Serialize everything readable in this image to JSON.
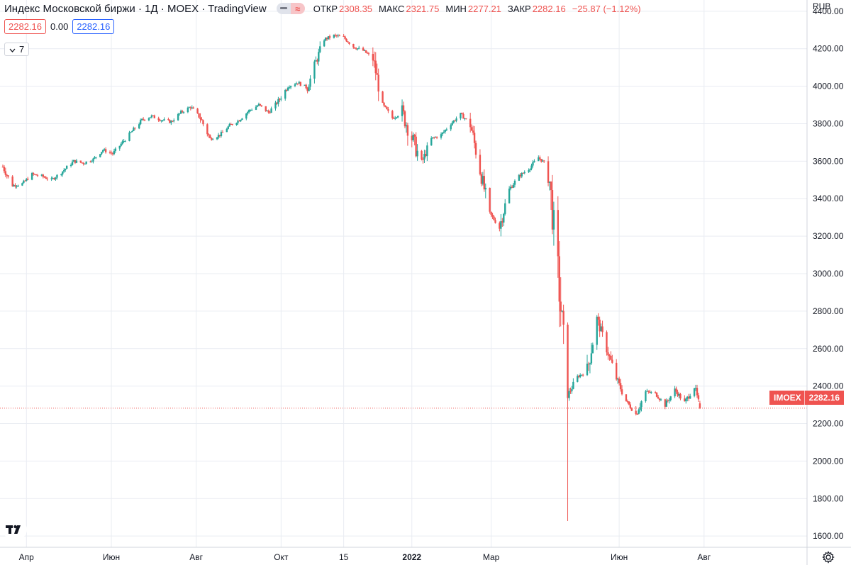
{
  "header": {
    "title": "Индекс Московской биржи · 1Д · MOEX · TradingView",
    "toggle_symbol": "≈",
    "open_label": "ОТКР",
    "open_value": "2308.35",
    "high_label": "МАКС",
    "high_value": "2321.75",
    "low_label": "МИН",
    "low_value": "2277.21",
    "close_label": "ЗАКР",
    "close_value": "2282.16",
    "change_value": "−25.87 (−1.12%)"
  },
  "values_row": {
    "price": "2282.16",
    "change": "0.00",
    "price2": "2282.16"
  },
  "collapse": {
    "count": "7"
  },
  "currency": "RUB",
  "price_badge": {
    "symbol": "IMOEX",
    "value": "2282.16"
  },
  "colors": {
    "up": "#26a69a",
    "down": "#ef5350",
    "grid": "#e9ecf2",
    "axis_text": "#131722"
  },
  "icons": {
    "logo": "tradingview-logo-icon",
    "settings": "gear-icon",
    "collapse": "chevron-down-icon"
  },
  "chart_data": {
    "type": "candlestick",
    "title": "Индекс Московской биржи",
    "interval": "1Д",
    "exchange": "MOEX",
    "currency": "RUB",
    "y_ticks": [
      1600,
      1800,
      2000,
      2200,
      2400,
      2600,
      2800,
      3000,
      3200,
      3400,
      3600,
      3800,
      4000,
      4200,
      4400
    ],
    "y_tick_labels": [
      "1600.00",
      "1800.00",
      "2000.00",
      "2200.00",
      "2400.00",
      "2600.00",
      "2800.00",
      "3000.00",
      "3200.00",
      "3400.00",
      "3600.00",
      "3800.00",
      "4000.00",
      "4200.00",
      "4400.00"
    ],
    "ylim": [
      1540,
      4460
    ],
    "x_ticks": [
      {
        "label": "Апр",
        "date": "2021-04-01",
        "bold": false
      },
      {
        "label": "Июн",
        "date": "2021-06-01",
        "bold": false
      },
      {
        "label": "Авг",
        "date": "2021-08-01",
        "bold": false
      },
      {
        "label": "Окт",
        "date": "2021-10-01",
        "bold": false
      },
      {
        "label": "15",
        "date": "2021-11-15",
        "bold": false
      },
      {
        "label": "2022",
        "date": "2022-01-03",
        "bold": true
      },
      {
        "label": "Мар",
        "date": "2022-03-01",
        "bold": false
      },
      {
        "label": "Июн",
        "date": "2022-06-01",
        "bold": false
      },
      {
        "label": "Авг",
        "date": "2022-08-01",
        "bold": false
      }
    ],
    "xlim": [
      "2021-03-13",
      "2022-10-14"
    ],
    "last_price": 2282.16,
    "close_path": [
      [
        "2021-03-15",
        3570
      ],
      [
        "2021-03-22",
        3470
      ],
      [
        "2021-03-29",
        3480
      ],
      [
        "2021-04-05",
        3530
      ],
      [
        "2021-04-12",
        3520
      ],
      [
        "2021-04-19",
        3500
      ],
      [
        "2021-04-26",
        3540
      ],
      [
        "2021-05-05",
        3600
      ],
      [
        "2021-05-12",
        3590
      ],
      [
        "2021-05-19",
        3610
      ],
      [
        "2021-05-26",
        3660
      ],
      [
        "2021-06-02",
        3640
      ],
      [
        "2021-06-09",
        3700
      ],
      [
        "2021-06-16",
        3760
      ],
      [
        "2021-06-23",
        3820
      ],
      [
        "2021-06-30",
        3840
      ],
      [
        "2021-07-07",
        3820
      ],
      [
        "2021-07-14",
        3810
      ],
      [
        "2021-07-21",
        3860
      ],
      [
        "2021-07-28",
        3890
      ],
      [
        "2021-08-04",
        3830
      ],
      [
        "2021-08-11",
        3720
      ],
      [
        "2021-08-18",
        3740
      ],
      [
        "2021-08-25",
        3790
      ],
      [
        "2021-09-01",
        3820
      ],
      [
        "2021-09-08",
        3870
      ],
      [
        "2021-09-15",
        3900
      ],
      [
        "2021-09-22",
        3860
      ],
      [
        "2021-09-29",
        3920
      ],
      [
        "2021-10-06",
        4000
      ],
      [
        "2021-10-13",
        4020
      ],
      [
        "2021-10-20",
        3990
      ],
      [
        "2021-10-25",
        4110
      ],
      [
        "2021-11-01",
        4250
      ],
      [
        "2021-11-08",
        4270
      ],
      [
        "2021-11-15",
        4260
      ],
      [
        "2021-11-22",
        4210
      ],
      [
        "2021-11-29",
        4190
      ],
      [
        "2021-12-06",
        4150
      ],
      [
        "2021-12-13",
        3900
      ],
      [
        "2021-12-20",
        3830
      ],
      [
        "2021-12-27",
        3860
      ],
      [
        "2022-01-10",
        3590
      ],
      [
        "2022-01-17",
        3720
      ],
      [
        "2022-01-24",
        3740
      ],
      [
        "2022-01-31",
        3800
      ],
      [
        "2022-02-07",
        3850
      ],
      [
        "2022-02-14",
        3800
      ],
      [
        "2022-02-21",
        3550
      ],
      [
        "2022-02-28",
        3320
      ],
      [
        "2022-03-07",
        3250
      ],
      [
        "2022-03-14",
        3450
      ],
      [
        "2022-03-21",
        3520
      ],
      [
        "2022-03-28",
        3560
      ],
      [
        "2022-04-04",
        3620
      ],
      [
        "2022-04-11",
        3570
      ],
      [
        "2022-04-18",
        3000
      ],
      [
        "2022-04-25",
        2350
      ],
      [
        "2022-05-02",
        2450
      ],
      [
        "2022-05-09",
        2480
      ],
      [
        "2022-05-16",
        2760
      ],
      [
        "2022-05-23",
        2600
      ],
      [
        "2022-05-30",
        2440
      ],
      [
        "2022-06-06",
        2320
      ],
      [
        "2022-06-13",
        2250
      ],
      [
        "2022-06-20",
        2370
      ],
      [
        "2022-06-27",
        2360
      ],
      [
        "2022-07-04",
        2300
      ],
      [
        "2022-07-11",
        2380
      ],
      [
        "2022-07-18",
        2310
      ],
      [
        "2022-07-25",
        2400
      ],
      [
        "2022-07-29",
        2282
      ]
    ],
    "notable_wicks": [
      {
        "date": "2022-04-25",
        "high": 2740,
        "low": 1680
      }
    ]
  }
}
